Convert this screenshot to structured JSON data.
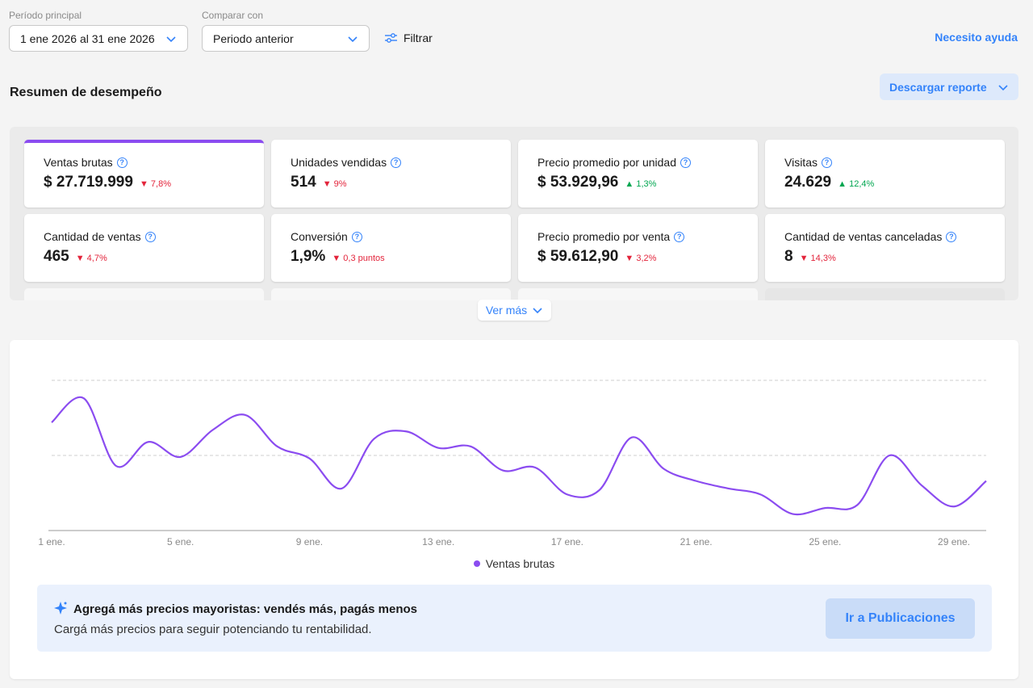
{
  "filters": {
    "period_label": "Período principal",
    "period_value": "1 ene 2026 al 31 ene 2026",
    "compare_label": "Comparar con",
    "compare_value": "Periodo anterior",
    "filter_label": "Filtrar",
    "help_label": "Necesito ayuda"
  },
  "summary": {
    "title": "Resumen de desempeño",
    "download_label": "Descargar reporte",
    "see_more_label": "Ver más"
  },
  "metrics": [
    {
      "label": "Ventas brutas",
      "value": "$ 27.719.999",
      "delta": "7,8%",
      "direction": "down",
      "selected": true
    },
    {
      "label": "Unidades vendidas",
      "value": "514",
      "delta": "9%",
      "direction": "down"
    },
    {
      "label": "Precio promedio por unidad",
      "value": "$ 53.929,96",
      "delta": "1,3%",
      "direction": "up"
    },
    {
      "label": "Visitas",
      "value": "24.629",
      "delta": "12,4%",
      "direction": "up"
    },
    {
      "label": "Cantidad de ventas",
      "value": "465",
      "delta": "4,7%",
      "direction": "down"
    },
    {
      "label": "Conversión",
      "value": "1,9%",
      "delta": "0,3 puntos",
      "direction": "down"
    },
    {
      "label": "Precio promedio por venta",
      "value": "$ 59.612,90",
      "delta": "3,2%",
      "direction": "down"
    },
    {
      "label": "Cantidad de ventas canceladas",
      "value": "8",
      "delta": "14,3%",
      "direction": "down"
    }
  ],
  "chart_data": {
    "type": "line",
    "x": [
      "1 ene.",
      "2 ene.",
      "3 ene.",
      "4 ene.",
      "5 ene.",
      "6 ene.",
      "7 ene.",
      "8 ene.",
      "9 ene.",
      "10 ene.",
      "11 ene.",
      "12 ene.",
      "13 ene.",
      "14 ene.",
      "15 ene.",
      "16 ene.",
      "17 ene.",
      "18 ene.",
      "19 ene.",
      "20 ene.",
      "21 ene.",
      "22 ene.",
      "23 ene.",
      "24 ene.",
      "25 ene.",
      "26 ene.",
      "27 ene.",
      "28 ene.",
      "29 ene.",
      "30 ene."
    ],
    "x_tick_labels": [
      "1 ene.",
      "5 ene.",
      "9 ene.",
      "13 ene.",
      "17 ene.",
      "21 ene.",
      "25 ene.",
      "29 ene."
    ],
    "series": [
      {
        "name": "Ventas brutas",
        "color": "#8b4cf0",
        "values": [
          0.72,
          0.88,
          0.43,
          0.59,
          0.49,
          0.67,
          0.77,
          0.56,
          0.48,
          0.28,
          0.61,
          0.66,
          0.55,
          0.56,
          0.4,
          0.42,
          0.24,
          0.27,
          0.62,
          0.41,
          0.33,
          0.28,
          0.24,
          0.11,
          0.15,
          0.17,
          0.5,
          0.3,
          0.16,
          0.33
        ]
      }
    ],
    "ylim": [
      0,
      1
    ],
    "grid": true,
    "legend": "bottom-center"
  },
  "promo": {
    "title": "Agregá más precios mayoristas: vendés más, pagás menos",
    "text": "Cargá más precios para seguir potenciando tu rentabilidad.",
    "button_label": "Ir a Publicaciones"
  },
  "colors": {
    "accent": "#3483fa",
    "series": "#8b4cf0",
    "negative": "#e3243b",
    "positive": "#00a650"
  }
}
